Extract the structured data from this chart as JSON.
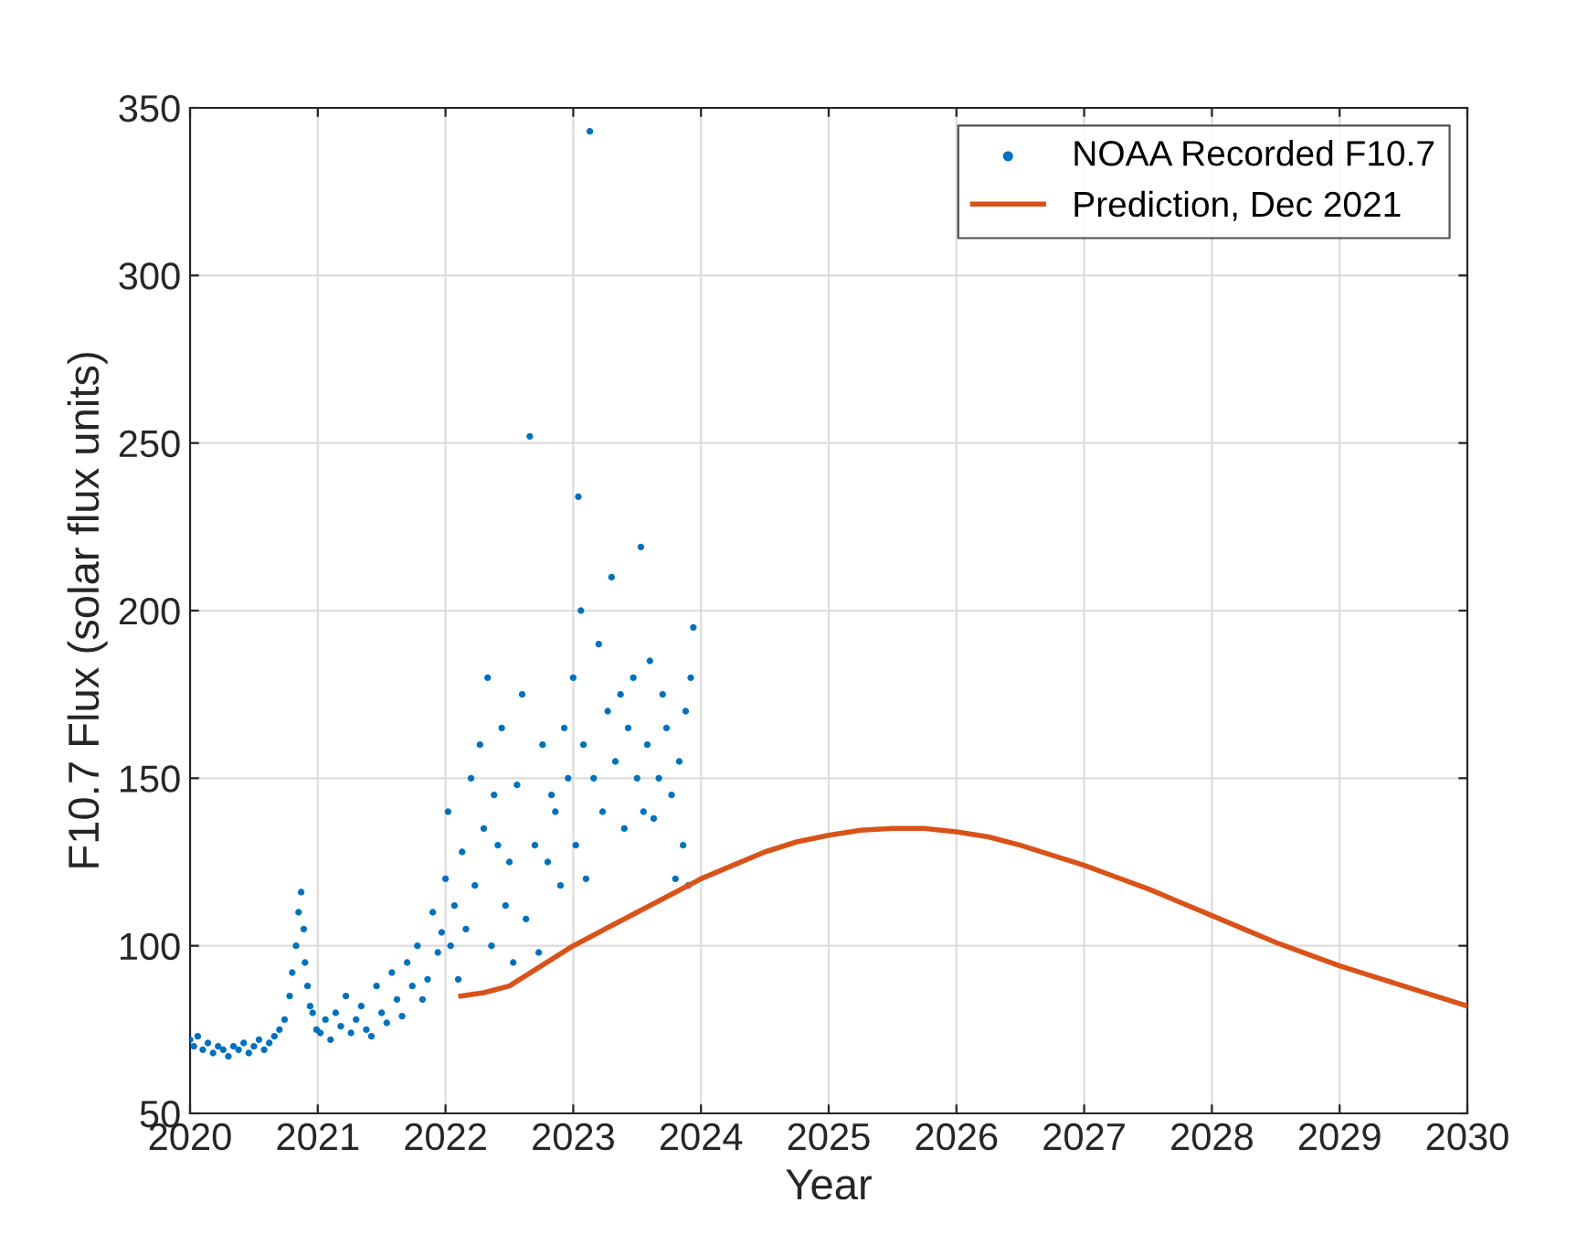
{
  "chart_data": {
    "type": "scatter",
    "xlabel": "Year",
    "ylabel": "F10.7 Flux (solar flux units)",
    "xlim": [
      2020,
      2030
    ],
    "xticks": [
      2020,
      2021,
      2022,
      2023,
      2024,
      2025,
      2026,
      2027,
      2028,
      2029,
      2030
    ],
    "ylim": [
      50,
      350
    ],
    "yticks": [
      50,
      100,
      150,
      200,
      250,
      300,
      350
    ],
    "grid": true,
    "legend": "top right",
    "series": [
      {
        "name": "NOAA Recorded F10.7",
        "color": "#0072bd",
        "marker": "circle",
        "x": [
          2020.0,
          2020.03,
          2020.06,
          2020.1,
          2020.14,
          2020.18,
          2020.22,
          2020.26,
          2020.3,
          2020.34,
          2020.38,
          2020.42,
          2020.46,
          2020.5,
          2020.54,
          2020.58,
          2020.62,
          2020.66,
          2020.7,
          2020.74,
          2020.78,
          2020.8,
          2020.83,
          2020.85,
          2020.87,
          2020.89,
          2020.9,
          2020.92,
          2020.94,
          2020.96,
          2020.99,
          2021.02,
          2021.06,
          2021.1,
          2021.14,
          2021.18,
          2021.22,
          2021.26,
          2021.3,
          2021.34,
          2021.38,
          2021.42,
          2021.46,
          2021.5,
          2021.54,
          2021.58,
          2021.62,
          2021.66,
          2021.7,
          2021.74,
          2021.78,
          2021.82,
          2021.86,
          2021.9,
          2021.94,
          2021.97,
          2022.0,
          2022.02,
          2022.04,
          2022.07,
          2022.1,
          2022.13,
          2022.16,
          2022.2,
          2022.23,
          2022.27,
          2022.3,
          2022.33,
          2022.36,
          2022.38,
          2022.41,
          2022.44,
          2022.47,
          2022.5,
          2022.53,
          2022.56,
          2022.6,
          2022.63,
          2022.66,
          2022.7,
          2022.73,
          2022.76,
          2022.8,
          2022.83,
          2022.86,
          2022.9,
          2022.93,
          2022.96,
          2023.0,
          2023.02,
          2023.04,
          2023.06,
          2023.08,
          2023.1,
          2023.13,
          2023.16,
          2023.2,
          2023.23,
          2023.27,
          2023.3,
          2023.33,
          2023.37,
          2023.4,
          2023.43,
          2023.47,
          2023.5,
          2023.53,
          2023.55,
          2023.58,
          2023.6,
          2023.63,
          2023.67,
          2023.7,
          2023.73,
          2023.77,
          2023.8,
          2023.83,
          2023.86,
          2023.88,
          2023.9,
          2023.92,
          2023.94
        ],
        "values": [
          72,
          70,
          73,
          69,
          71,
          68,
          70,
          69,
          67,
          70,
          69,
          71,
          68,
          70,
          72,
          69,
          71,
          73,
          75,
          78,
          85,
          92,
          100,
          110,
          116,
          105,
          95,
          88,
          82,
          80,
          75,
          74,
          78,
          72,
          80,
          76,
          85,
          74,
          78,
          82,
          75,
          73,
          88,
          80,
          77,
          92,
          84,
          79,
          95,
          88,
          100,
          84,
          90,
          110,
          98,
          104,
          120,
          140,
          100,
          112,
          90,
          128,
          105,
          150,
          118,
          160,
          135,
          180,
          100,
          145,
          130,
          165,
          112,
          125,
          95,
          148,
          175,
          108,
          252,
          130,
          98,
          160,
          125,
          145,
          140,
          118,
          165,
          150,
          180,
          130,
          234,
          200,
          160,
          120,
          343,
          150,
          190,
          140,
          170,
          210,
          155,
          175,
          135,
          165,
          180,
          150,
          219,
          140,
          160,
          185,
          138,
          150,
          175,
          165,
          145,
          120,
          155,
          130,
          170,
          118,
          180,
          195
        ]
      },
      {
        "name": "Prediction, Dec 2021",
        "type": "line",
        "color": "#d95319",
        "marker": "none",
        "line_style": "solid",
        "x": [
          2022.12,
          2022.3,
          2022.5,
          2022.75,
          2023.0,
          2023.25,
          2023.5,
          2023.75,
          2024.0,
          2024.25,
          2024.5,
          2024.75,
          2025.0,
          2025.25,
          2025.5,
          2025.75,
          2026.0,
          2026.25,
          2026.5,
          2026.75,
          2027.0,
          2027.25,
          2027.5,
          2027.75,
          2028.0,
          2028.25,
          2028.5,
          2028.75,
          2029.0,
          2029.25,
          2029.5,
          2029.75,
          2030.0
        ],
        "values": [
          85,
          86,
          88,
          94,
          100,
          105,
          110,
          115,
          120,
          124,
          128,
          131,
          133,
          134.5,
          135,
          135,
          134,
          132.5,
          130,
          127,
          124,
          120.5,
          117,
          113,
          109,
          105,
          101,
          97.5,
          94,
          91,
          88,
          85,
          82
        ]
      }
    ]
  }
}
